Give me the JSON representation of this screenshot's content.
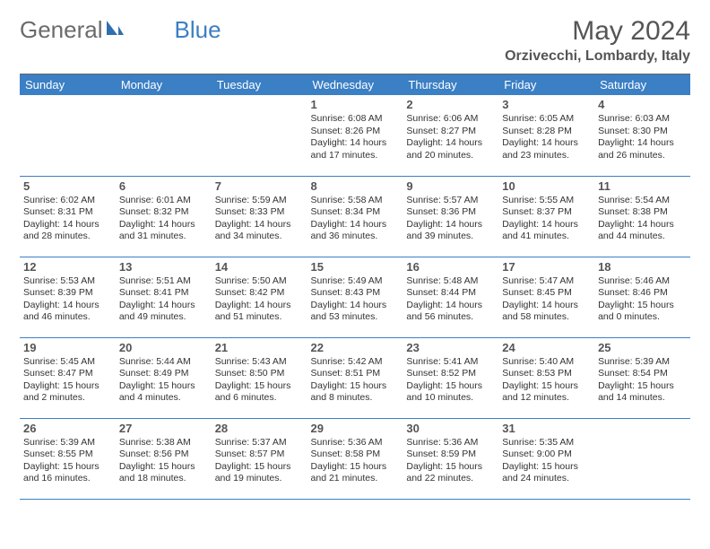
{
  "logo": {
    "text1": "General",
    "text2": "Blue"
  },
  "title": "May 2024",
  "location": "Orzivecchi, Lombardy, Italy",
  "colors": {
    "header_bg": "#3b7fc4",
    "header_text": "#ffffff",
    "border": "#3b7fc4",
    "body_text": "#333333",
    "title_text": "#555555"
  },
  "day_headers": [
    "Sunday",
    "Monday",
    "Tuesday",
    "Wednesday",
    "Thursday",
    "Friday",
    "Saturday"
  ],
  "weeks": [
    [
      null,
      null,
      null,
      {
        "n": "1",
        "sr": "6:08 AM",
        "ss": "8:26 PM",
        "dl": "14 hours and 17 minutes."
      },
      {
        "n": "2",
        "sr": "6:06 AM",
        "ss": "8:27 PM",
        "dl": "14 hours and 20 minutes."
      },
      {
        "n": "3",
        "sr": "6:05 AM",
        "ss": "8:28 PM",
        "dl": "14 hours and 23 minutes."
      },
      {
        "n": "4",
        "sr": "6:03 AM",
        "ss": "8:30 PM",
        "dl": "14 hours and 26 minutes."
      }
    ],
    [
      {
        "n": "5",
        "sr": "6:02 AM",
        "ss": "8:31 PM",
        "dl": "14 hours and 28 minutes."
      },
      {
        "n": "6",
        "sr": "6:01 AM",
        "ss": "8:32 PM",
        "dl": "14 hours and 31 minutes."
      },
      {
        "n": "7",
        "sr": "5:59 AM",
        "ss": "8:33 PM",
        "dl": "14 hours and 34 minutes."
      },
      {
        "n": "8",
        "sr": "5:58 AM",
        "ss": "8:34 PM",
        "dl": "14 hours and 36 minutes."
      },
      {
        "n": "9",
        "sr": "5:57 AM",
        "ss": "8:36 PM",
        "dl": "14 hours and 39 minutes."
      },
      {
        "n": "10",
        "sr": "5:55 AM",
        "ss": "8:37 PM",
        "dl": "14 hours and 41 minutes."
      },
      {
        "n": "11",
        "sr": "5:54 AM",
        "ss": "8:38 PM",
        "dl": "14 hours and 44 minutes."
      }
    ],
    [
      {
        "n": "12",
        "sr": "5:53 AM",
        "ss": "8:39 PM",
        "dl": "14 hours and 46 minutes."
      },
      {
        "n": "13",
        "sr": "5:51 AM",
        "ss": "8:41 PM",
        "dl": "14 hours and 49 minutes."
      },
      {
        "n": "14",
        "sr": "5:50 AM",
        "ss": "8:42 PM",
        "dl": "14 hours and 51 minutes."
      },
      {
        "n": "15",
        "sr": "5:49 AM",
        "ss": "8:43 PM",
        "dl": "14 hours and 53 minutes."
      },
      {
        "n": "16",
        "sr": "5:48 AM",
        "ss": "8:44 PM",
        "dl": "14 hours and 56 minutes."
      },
      {
        "n": "17",
        "sr": "5:47 AM",
        "ss": "8:45 PM",
        "dl": "14 hours and 58 minutes."
      },
      {
        "n": "18",
        "sr": "5:46 AM",
        "ss": "8:46 PM",
        "dl": "15 hours and 0 minutes."
      }
    ],
    [
      {
        "n": "19",
        "sr": "5:45 AM",
        "ss": "8:47 PM",
        "dl": "15 hours and 2 minutes."
      },
      {
        "n": "20",
        "sr": "5:44 AM",
        "ss": "8:49 PM",
        "dl": "15 hours and 4 minutes."
      },
      {
        "n": "21",
        "sr": "5:43 AM",
        "ss": "8:50 PM",
        "dl": "15 hours and 6 minutes."
      },
      {
        "n": "22",
        "sr": "5:42 AM",
        "ss": "8:51 PM",
        "dl": "15 hours and 8 minutes."
      },
      {
        "n": "23",
        "sr": "5:41 AM",
        "ss": "8:52 PM",
        "dl": "15 hours and 10 minutes."
      },
      {
        "n": "24",
        "sr": "5:40 AM",
        "ss": "8:53 PM",
        "dl": "15 hours and 12 minutes."
      },
      {
        "n": "25",
        "sr": "5:39 AM",
        "ss": "8:54 PM",
        "dl": "15 hours and 14 minutes."
      }
    ],
    [
      {
        "n": "26",
        "sr": "5:39 AM",
        "ss": "8:55 PM",
        "dl": "15 hours and 16 minutes."
      },
      {
        "n": "27",
        "sr": "5:38 AM",
        "ss": "8:56 PM",
        "dl": "15 hours and 18 minutes."
      },
      {
        "n": "28",
        "sr": "5:37 AM",
        "ss": "8:57 PM",
        "dl": "15 hours and 19 minutes."
      },
      {
        "n": "29",
        "sr": "5:36 AM",
        "ss": "8:58 PM",
        "dl": "15 hours and 21 minutes."
      },
      {
        "n": "30",
        "sr": "5:36 AM",
        "ss": "8:59 PM",
        "dl": "15 hours and 22 minutes."
      },
      {
        "n": "31",
        "sr": "5:35 AM",
        "ss": "9:00 PM",
        "dl": "15 hours and 24 minutes."
      },
      null
    ]
  ],
  "labels": {
    "sunrise": "Sunrise:",
    "sunset": "Sunset:",
    "daylight": "Daylight:"
  }
}
